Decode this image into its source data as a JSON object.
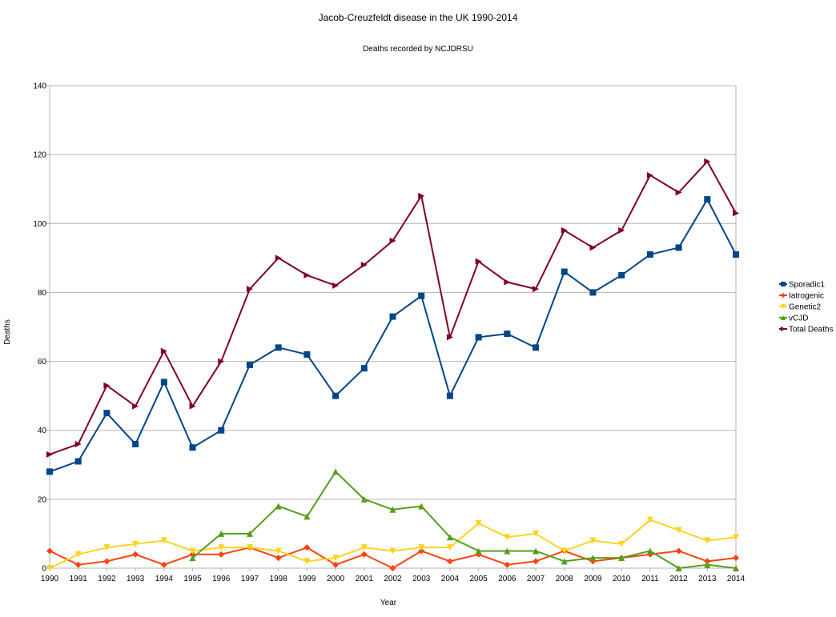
{
  "chart_data": {
    "type": "line",
    "title": "Jacob-Creuzfeldt disease in the UK 1990-2014",
    "subtitle": "Deaths recorded by NCJDRSU",
    "xlabel": "Year",
    "ylabel": "Deaths",
    "ylim": [
      0,
      140
    ],
    "yticks": [
      "0",
      "20",
      "40",
      "60",
      "80",
      "100",
      "120",
      "140"
    ],
    "grid": "horizontal",
    "legend_position": "right",
    "categories": [
      "1990",
      "1991",
      "1992",
      "1993",
      "1994",
      "1995",
      "1996",
      "1997",
      "1998",
      "1999",
      "2000",
      "2001",
      "2002",
      "2003",
      "2004",
      "2005",
      "2006",
      "2007",
      "2008",
      "2009",
      "2010",
      "2011",
      "2012",
      "2013",
      "2014"
    ],
    "series": [
      {
        "name": "Sporadic1",
        "color": "#004586",
        "marker": "square",
        "values": [
          28,
          31,
          45,
          36,
          54,
          35,
          40,
          59,
          64,
          62,
          50,
          58,
          73,
          79,
          50,
          67,
          68,
          64,
          86,
          80,
          85,
          91,
          93,
          107,
          91
        ]
      },
      {
        "name": "Iatrogenic",
        "color": "#ff420e",
        "marker": "diamond",
        "values": [
          5,
          1,
          2,
          4,
          1,
          4,
          4,
          6,
          3,
          6,
          1,
          4,
          0,
          5,
          2,
          4,
          1,
          2,
          5,
          2,
          3,
          4,
          5,
          2,
          3
        ]
      },
      {
        "name": "Genetic2",
        "color": "#ffd320",
        "marker": "triangle-down",
        "values": [
          0,
          4,
          6,
          7,
          8,
          5,
          6,
          6,
          5,
          2,
          3,
          6,
          5,
          6,
          6,
          13,
          9,
          10,
          5,
          8,
          7,
          14,
          11,
          8,
          9
        ]
      },
      {
        "name": "vCJD",
        "color": "#579d1c",
        "marker": "triangle-up",
        "values": [
          null,
          null,
          null,
          null,
          null,
          3,
          10,
          10,
          18,
          15,
          28,
          20,
          17,
          18,
          9,
          5,
          5,
          5,
          2,
          3,
          3,
          5,
          0,
          1,
          0
        ]
      },
      {
        "name": "Total Deaths",
        "color": "#7e0021",
        "marker": "triangle-right",
        "values": [
          33,
          36,
          53,
          47,
          63,
          47,
          60,
          81,
          90,
          85,
          82,
          88,
          95,
          108,
          67,
          89,
          83,
          81,
          98,
          93,
          98,
          114,
          109,
          118,
          103
        ]
      }
    ]
  }
}
